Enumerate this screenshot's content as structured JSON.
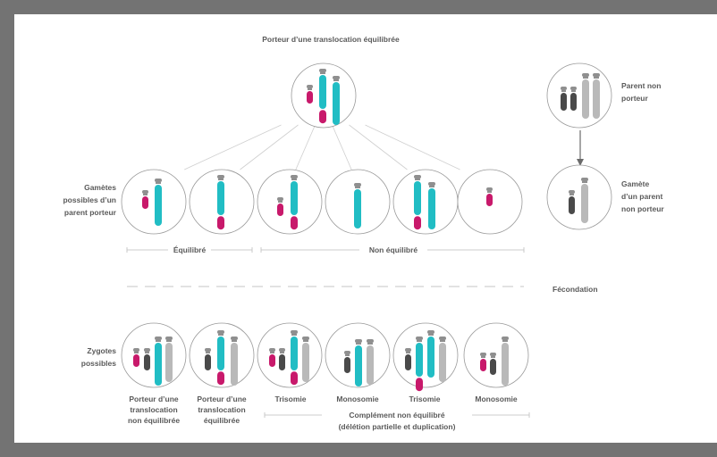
{
  "title": "Porteur d’une translocation équilibrée",
  "parent": {
    "line1": "Parent non",
    "line2": "porteur"
  },
  "gamete_parent": {
    "line1": "Gamète",
    "line2": "d’un parent",
    "line3": "non porteur"
  },
  "gametes_label": {
    "line1": "Gamètes",
    "line2": "possibles d’un",
    "line3": "parent porteur"
  },
  "balanced_label": "Équilibré",
  "unbalanced_label": "Non équilibré",
  "fecondation_label": "Fécondation",
  "zygotes_label": {
    "line1": "Zygotes",
    "line2": "possibles"
  },
  "zygote_captions": {
    "z1": {
      "line1": "Porteur d’une",
      "line2": "translocation",
      "line3": "non équilibrée"
    },
    "z2": {
      "line1": "Porteur d’une",
      "line2": "translocation",
      "line3": "équilibrée"
    },
    "z3": "Trisomie",
    "z4": "Monosomie",
    "z5": "Trisomie",
    "z6": "Monosomie"
  },
  "complement_label": {
    "line1": "Complément non équilibré",
    "line2": "(délétion partielle et duplication)"
  },
  "colors": {
    "magenta": "#c8196b",
    "teal": "#21bdc4",
    "dark": "#4a4a4a",
    "light": "#b9b9b9",
    "centromere": "#8f8f8f",
    "frame": "#737373"
  }
}
